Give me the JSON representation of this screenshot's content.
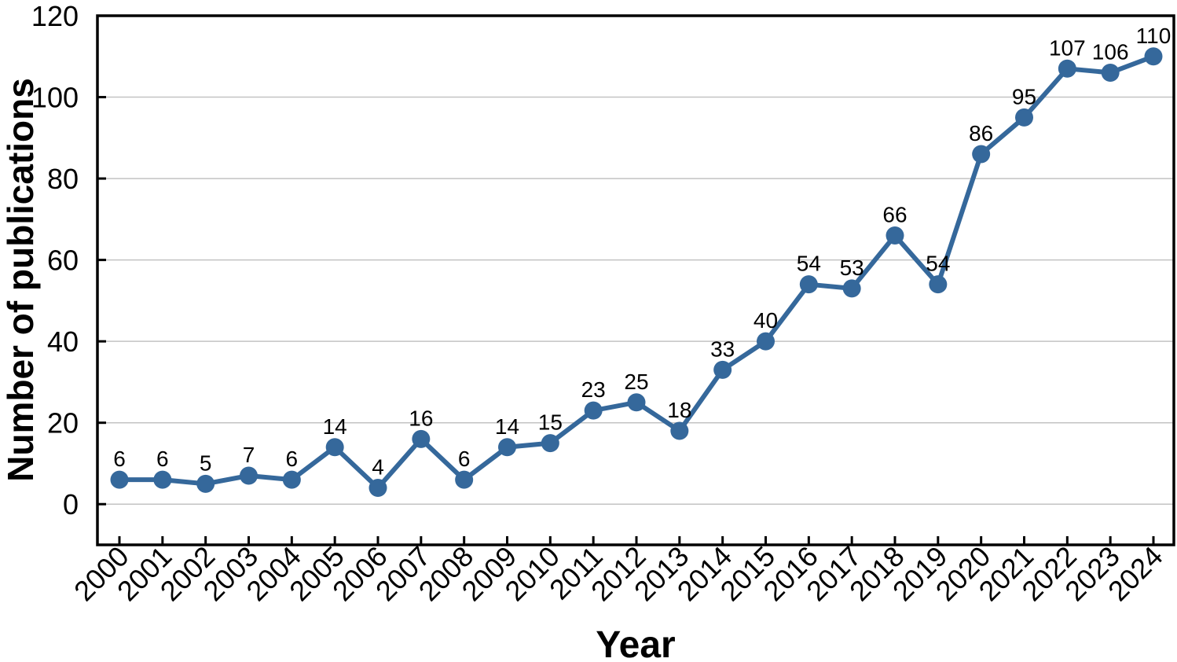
{
  "chart_data": {
    "type": "line",
    "title": "",
    "xlabel": "Year",
    "ylabel": "Number of publications",
    "categories": [
      "2000",
      "2001",
      "2002",
      "2003",
      "2004",
      "2005",
      "2006",
      "2007",
      "2008",
      "2009",
      "2010",
      "2011",
      "2012",
      "2013",
      "2014",
      "2015",
      "2016",
      "2017",
      "2018",
      "2019",
      "2020",
      "2021",
      "2022",
      "2023",
      "2024"
    ],
    "values": [
      6,
      6,
      5,
      7,
      6,
      14,
      4,
      16,
      6,
      14,
      15,
      23,
      25,
      18,
      33,
      40,
      54,
      53,
      66,
      54,
      86,
      95,
      107,
      106,
      110
    ],
    "yticks": [
      0,
      20,
      40,
      60,
      80,
      100,
      120
    ],
    "ylim": [
      -10,
      120
    ],
    "grid": "horizontal",
    "legend": "none",
    "marker": "circle",
    "data_labels_shown": true,
    "colors": {
      "line": "#35689B",
      "marker": "#35689B",
      "grid": "#c3c3c3",
      "axis": "#000000",
      "text": "#000000",
      "background": "#ffffff"
    }
  }
}
